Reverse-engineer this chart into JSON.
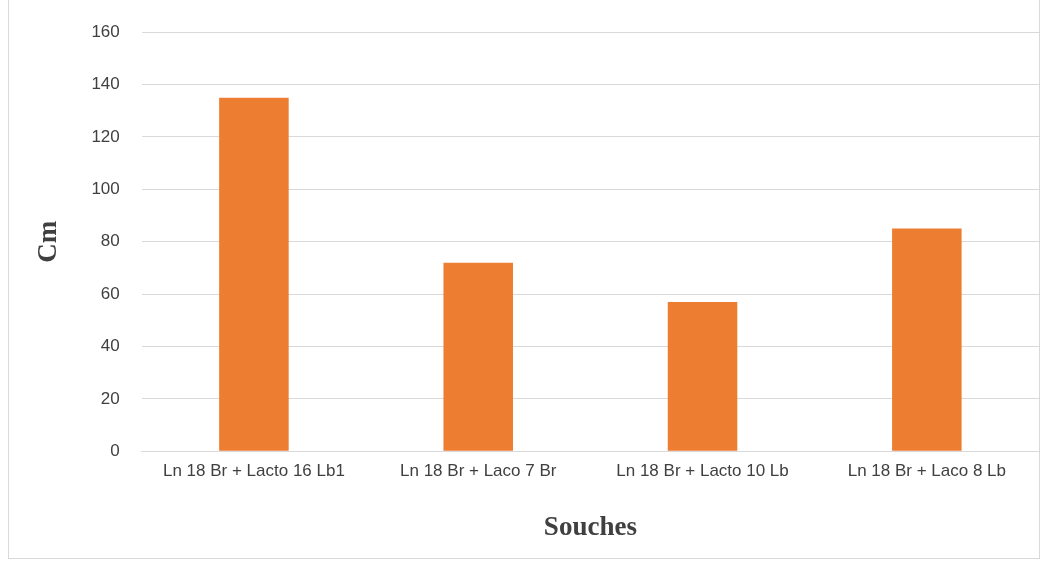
{
  "chart_data": {
    "type": "bar",
    "xlabel": "Souches",
    "ylabel": "Cm",
    "categories": [
      "Ln 18 Br + Lacto 16 Lb1",
      "Ln 18 Br + Laco 7 Br",
      "Ln 18 Br + Lacto 10 Lb",
      "Ln 18 Br + Laco 8 Lb"
    ],
    "values": [
      135,
      72,
      57,
      85
    ],
    "color": "#ed7d31",
    "ylim": [
      0,
      160
    ],
    "yticks": [
      0,
      20,
      40,
      60,
      80,
      100,
      120,
      140,
      160
    ],
    "grid": "y",
    "legend": false
  }
}
